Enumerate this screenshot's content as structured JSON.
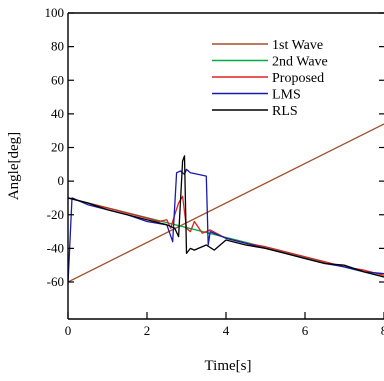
{
  "chart_data": {
    "type": "line",
    "title": "",
    "xlabel": "Time[s]",
    "ylabel": "Angle[deg]",
    "xlim": [
      0,
      8
    ],
    "ylim": [
      -65,
      100
    ],
    "xticks": [
      "0",
      "2",
      "4",
      "6",
      "8"
    ],
    "yticks": [
      "-60",
      "-40",
      "-20",
      "0",
      "20",
      "40",
      "60",
      "80",
      "100"
    ],
    "grid": false,
    "legend_position": "top-right",
    "series": [
      {
        "name": "1st Wave",
        "color": "#a0522d",
        "x": [
          0,
          8
        ],
        "y": [
          -60,
          34
        ]
      },
      {
        "name": "2nd Wave",
        "color": "#00aa44",
        "x": [
          0,
          8
        ],
        "y": [
          -10,
          -57
        ]
      },
      {
        "name": "Proposed",
        "color": "#e02020",
        "x": [
          0,
          0.5,
          1,
          1.5,
          2,
          2.3,
          2.5,
          2.6,
          2.7,
          2.8,
          2.9,
          3.0,
          3.1,
          3.2,
          3.4,
          3.6,
          4,
          4.5,
          5,
          5.5,
          6,
          6.5,
          7,
          7.5,
          8
        ],
        "y": [
          -10,
          -13,
          -16,
          -19,
          -22,
          -24,
          -23,
          -28,
          -20,
          -13,
          -9,
          -28,
          -30,
          -24,
          -31,
          -29,
          -34,
          -37,
          -39,
          -42,
          -45,
          -48,
          -51,
          -53,
          -56
        ]
      },
      {
        "name": "LMS",
        "color": "#1a1aaa",
        "x": [
          0,
          0.1,
          0.5,
          1,
          1.5,
          2,
          2.5,
          2.65,
          2.75,
          2.85,
          2.95,
          3.0,
          3.1,
          3.3,
          3.5,
          3.55,
          3.6,
          4,
          4.5,
          5,
          5.5,
          6,
          6.5,
          7,
          7.5,
          8
        ],
        "y": [
          -61,
          -10,
          -14,
          -17,
          -20,
          -24,
          -26,
          -36,
          5,
          6,
          4,
          7,
          5,
          4,
          3,
          -38,
          -30,
          -34,
          -37,
          -40,
          -43,
          -46,
          -49,
          -51,
          -54,
          -55
        ]
      },
      {
        "name": "RLS",
        "color": "#000000",
        "x": [
          0,
          0.5,
          1,
          1.5,
          2,
          2.5,
          2.7,
          2.8,
          2.9,
          2.95,
          3.0,
          3.1,
          3.2,
          3.3,
          3.5,
          3.7,
          4,
          4.5,
          5,
          5.5,
          6,
          6.5,
          7,
          7.5,
          8
        ],
        "y": [
          -10,
          -13,
          -17,
          -20,
          -23,
          -26,
          -28,
          -33,
          12,
          15,
          -43,
          -40,
          -41,
          -40,
          -38,
          -41,
          -35,
          -38,
          -40,
          -43,
          -46,
          -49,
          -50,
          -54,
          -57
        ]
      }
    ]
  }
}
